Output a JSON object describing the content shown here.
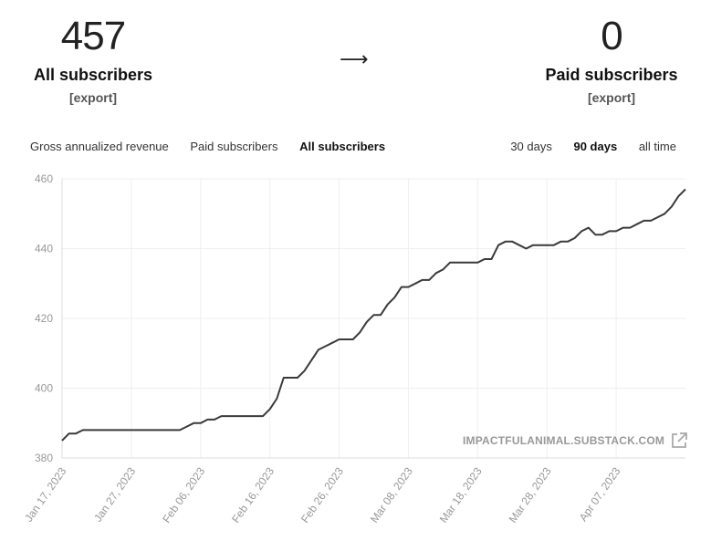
{
  "stats": {
    "all": {
      "value": "457",
      "label": "All subscribers",
      "export": "[export]"
    },
    "arrow": "⟶",
    "paid": {
      "value": "0",
      "label": "Paid subscribers",
      "export": "[export]"
    }
  },
  "metric_tabs": [
    "Gross annualized revenue",
    "Paid subscribers",
    "All subscribers"
  ],
  "metric_active": 2,
  "range_tabs": [
    "30 days",
    "90 days",
    "all time"
  ],
  "range_active": 1,
  "watermark": "IMPACTFULANIMAL.SUBSTACK.COM",
  "colors": {
    "line": "#3a3a3a",
    "grid": "#efefef",
    "tick": "#999999"
  },
  "chart_data": {
    "type": "line",
    "title": "",
    "xlabel": "",
    "ylabel": "",
    "ylim": [
      380,
      460
    ],
    "yticks": [
      380,
      400,
      420,
      440,
      460
    ],
    "x_tick_labels": [
      "Jan 17, 2023",
      "Jan 27, 2023",
      "Feb 06, 2023",
      "Feb 16, 2023",
      "Feb 26, 2023",
      "Mar 08, 2023",
      "Mar 18, 2023",
      "Mar 28, 2023",
      "Apr 07, 2023"
    ],
    "x_start_date": "2023-01-17",
    "x_end_date": "2023-04-17",
    "grid": true,
    "series": [
      {
        "dates": [
          "2023-01-17",
          "2023-01-18",
          "2023-01-19",
          "2023-01-20",
          "2023-01-27",
          "2023-02-03",
          "2023-02-04",
          "2023-02-05",
          "2023-02-06",
          "2023-02-07",
          "2023-02-08",
          "2023-02-09",
          "2023-02-10",
          "2023-02-11",
          "2023-02-15",
          "2023-02-16",
          "2023-02-17",
          "2023-02-18",
          "2023-02-19",
          "2023-02-20",
          "2023-02-21",
          "2023-02-22",
          "2023-02-23",
          "2023-02-24",
          "2023-02-25",
          "2023-02-26",
          "2023-02-27",
          "2023-02-28",
          "2023-03-01",
          "2023-03-02",
          "2023-03-03",
          "2023-03-04",
          "2023-03-05",
          "2023-03-06",
          "2023-03-07",
          "2023-03-08",
          "2023-03-09",
          "2023-03-10",
          "2023-03-11",
          "2023-03-12",
          "2023-03-13",
          "2023-03-14",
          "2023-03-15",
          "2023-03-16",
          "2023-03-17",
          "2023-03-18",
          "2023-03-19",
          "2023-03-20",
          "2023-03-21",
          "2023-03-22",
          "2023-03-23",
          "2023-03-24",
          "2023-03-25",
          "2023-03-26",
          "2023-03-27",
          "2023-03-28",
          "2023-03-29",
          "2023-03-30",
          "2023-03-31",
          "2023-04-01",
          "2023-04-02",
          "2023-04-03",
          "2023-04-04",
          "2023-04-05",
          "2023-04-06",
          "2023-04-07",
          "2023-04-08",
          "2023-04-09",
          "2023-04-10",
          "2023-04-11",
          "2023-04-12",
          "2023-04-13",
          "2023-04-14",
          "2023-04-15",
          "2023-04-16",
          "2023-04-17"
        ],
        "values": [
          385,
          387,
          387,
          388,
          388,
          388,
          389,
          390,
          390,
          391,
          391,
          392,
          392,
          392,
          392,
          394,
          397,
          403,
          403,
          403,
          405,
          408,
          411,
          412,
          413,
          414,
          414,
          414,
          416,
          419,
          421,
          421,
          424,
          426,
          429,
          429,
          430,
          431,
          431,
          433,
          434,
          436,
          436,
          436,
          436,
          436,
          437,
          437,
          441,
          442,
          442,
          441,
          440,
          441,
          441,
          441,
          441,
          442,
          442,
          443,
          445,
          446,
          444,
          444,
          445,
          445,
          446,
          446,
          447,
          448,
          448,
          449,
          450,
          452,
          455,
          457
        ]
      }
    ]
  }
}
